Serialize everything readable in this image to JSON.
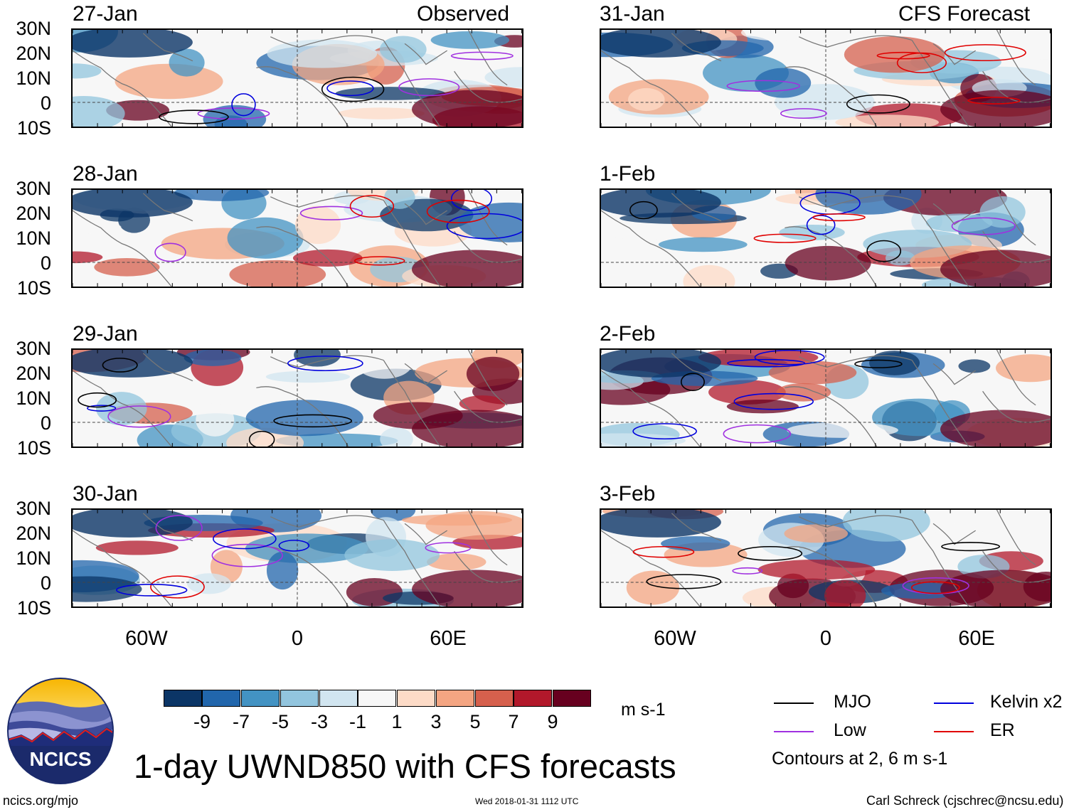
{
  "panel_headers": {
    "left": "Observed",
    "right": "CFS Forecast"
  },
  "panels": [
    {
      "date": "27-Jan",
      "group": "observed",
      "seed": 1
    },
    {
      "date": "28-Jan",
      "group": "observed",
      "seed": 2
    },
    {
      "date": "29-Jan",
      "group": "observed",
      "seed": 3
    },
    {
      "date": "30-Jan",
      "group": "observed",
      "seed": 4
    },
    {
      "date": "31-Jan",
      "group": "forecast",
      "seed": 5
    },
    {
      "date": "1-Feb",
      "group": "forecast",
      "seed": 6
    },
    {
      "date": "2-Feb",
      "group": "forecast",
      "seed": 7
    },
    {
      "date": "3-Feb",
      "group": "forecast",
      "seed": 8
    }
  ],
  "axes": {
    "lat_labels": [
      "30N",
      "20N",
      "10N",
      "0",
      "10S"
    ],
    "lon_labels": [
      "60W",
      "0",
      "60E"
    ],
    "lon_range": [
      -90,
      90
    ],
    "lat_range": [
      -10,
      30
    ]
  },
  "colorbar": {
    "ticks": [
      "-9",
      "-7",
      "-5",
      "-3",
      "-1",
      "1",
      "3",
      "5",
      "7",
      "9"
    ],
    "colors": [
      "#0b3566",
      "#2166ac",
      "#4393c3",
      "#92c5de",
      "#d1e5f0",
      "#f7f7f7",
      "#fddbc7",
      "#f4a582",
      "#d6604d",
      "#b2182b",
      "#67001f"
    ],
    "units": "m s-1"
  },
  "legend": [
    {
      "label": "MJO",
      "color": "#000000"
    },
    {
      "label": "Kelvin x2",
      "color": "#0000dd"
    },
    {
      "label": "Low",
      "color": "#a030e0"
    },
    {
      "label": "ER",
      "color": "#e00000"
    }
  ],
  "contour_note": "Contours at 2, 6 m s-1",
  "title": "1-day UWND850 with CFS forecasts",
  "footer": {
    "url": "ncics.org/mjo",
    "timestamp": "Wed 2018-01-31 1112 UTC",
    "author": "Carl Schreck (cjschrec@ncsu.edu)"
  },
  "logo_text": "NCICS"
}
